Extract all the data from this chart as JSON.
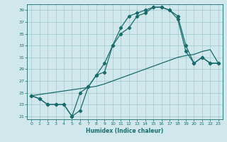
{
  "xlabel": "Humidex (Indice chaleur)",
  "bg_color": "#d0e8ec",
  "grid_color": "#a0c8cc",
  "line_color": "#1a6b6b",
  "xlim": [
    -0.5,
    23.5
  ],
  "ylim": [
    20.5,
    40.0
  ],
  "xticks": [
    0,
    1,
    2,
    3,
    4,
    5,
    6,
    7,
    8,
    9,
    10,
    11,
    12,
    13,
    14,
    15,
    16,
    17,
    18,
    19,
    20,
    21,
    22,
    23
  ],
  "yticks": [
    21,
    23,
    25,
    27,
    29,
    31,
    33,
    35,
    37,
    39
  ],
  "line1_x": [
    0,
    1,
    2,
    3,
    4,
    5,
    6,
    7,
    8,
    9,
    10,
    11,
    12,
    13,
    14,
    15,
    16,
    17,
    18,
    19,
    20,
    21,
    22,
    23
  ],
  "line1_y": [
    24.5,
    24,
    23,
    23,
    23,
    21,
    22,
    26,
    28,
    28.5,
    33,
    36,
    38,
    38.5,
    39,
    39.5,
    39.5,
    39,
    38,
    33,
    30,
    31,
    30,
    30
  ],
  "line2_x": [
    0,
    1,
    2,
    3,
    4,
    5,
    6,
    7,
    8,
    9,
    10,
    11,
    12,
    13,
    14,
    15,
    16,
    17,
    18,
    19,
    20,
    21,
    22,
    23
  ],
  "line2_y": [
    24.5,
    24,
    23,
    23,
    23,
    21,
    25,
    26,
    28,
    30,
    33,
    35,
    36,
    38,
    38.5,
    39.5,
    39.5,
    39,
    37.5,
    32,
    30,
    31,
    30,
    30
  ],
  "line3_x": [
    0,
    1,
    2,
    3,
    4,
    5,
    6,
    7,
    8,
    9,
    10,
    11,
    12,
    13,
    14,
    15,
    16,
    17,
    18,
    19,
    20,
    21,
    22,
    23
  ],
  "line3_y": [
    24.5,
    24.7,
    24.9,
    25.1,
    25.3,
    25.5,
    25.7,
    25.9,
    26.1,
    26.5,
    27.0,
    27.5,
    28.0,
    28.5,
    29.0,
    29.5,
    30.0,
    30.5,
    31.0,
    31.3,
    31.5,
    32.0,
    32.3,
    30
  ]
}
